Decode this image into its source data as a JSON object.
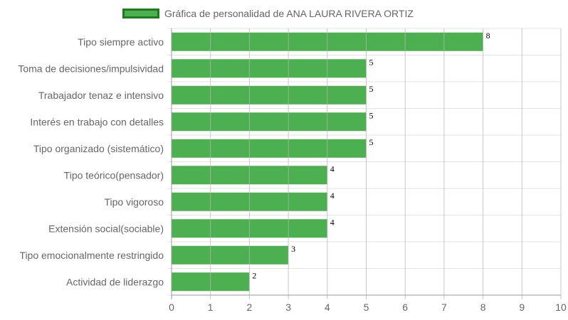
{
  "chart_data": {
    "type": "bar",
    "orientation": "horizontal",
    "title": "",
    "xlabel": "",
    "ylabel": "",
    "categories": [
      "Tipo siempre activo",
      "Toma de decisiones/impulsividad",
      "Trabajador tenaz e intensivo",
      "Interés en trabajo con detalles",
      "Tipo organizado (sistemático)",
      "Tipo teórico(pensador)",
      "Tipo vigoroso",
      "Extensión social(sociable)",
      "Tipo emocionalmente restringido",
      "Actividad de liderazgo"
    ],
    "series": [
      {
        "name": "Gráfica de personalidad de ANA LAURA RIVERA ORTIZ",
        "values": [
          8,
          5,
          5,
          5,
          5,
          4,
          4,
          4,
          3,
          2
        ],
        "color": "#4caf50",
        "border_color": "#1f7a1f"
      }
    ],
    "xlim": [
      0,
      10
    ],
    "x_ticks": [
      "0",
      "1",
      "2",
      "3",
      "4",
      "5",
      "6",
      "7",
      "8",
      "9",
      "10"
    ],
    "value_labels": [
      "8",
      "5",
      "5",
      "5",
      "5",
      "4",
      "4",
      "4",
      "3",
      "2"
    ],
    "grid": true,
    "legend_position": "top"
  }
}
